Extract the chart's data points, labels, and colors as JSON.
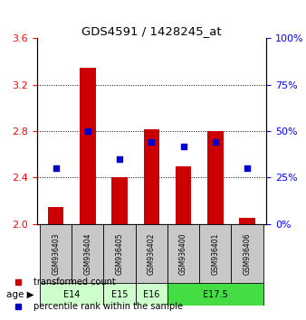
{
  "title": "GDS4591 / 1428245_at",
  "samples": [
    "GSM936403",
    "GSM936404",
    "GSM936405",
    "GSM936402",
    "GSM936400",
    "GSM936401",
    "GSM936406"
  ],
  "bar_values": [
    2.15,
    3.35,
    2.4,
    2.82,
    2.5,
    2.8,
    2.05
  ],
  "bar_bottom": 2.0,
  "percentile_values": [
    30,
    50,
    35,
    44,
    42,
    44,
    30
  ],
  "ylim_left": [
    2.0,
    3.6
  ],
  "ylim_right": [
    0,
    100
  ],
  "yticks_left": [
    2.0,
    2.4,
    2.8,
    3.2,
    3.6
  ],
  "yticks_right": [
    0,
    25,
    50,
    75,
    100
  ],
  "bar_color": "#cc0000",
  "dot_color": "#0000cc",
  "age_groups": [
    {
      "label": "E14",
      "spans": [
        0,
        1
      ],
      "color": "#ccffcc"
    },
    {
      "label": "E15",
      "spans": [
        2
      ],
      "color": "#ccffcc"
    },
    {
      "label": "E16",
      "spans": [
        3
      ],
      "color": "#ccffcc"
    },
    {
      "label": "E17.5",
      "spans": [
        4,
        5,
        6
      ],
      "color": "#44dd44"
    }
  ],
  "legend_items": [
    {
      "label": "transformed count",
      "color": "#cc0000"
    },
    {
      "label": "percentile rank within the sample",
      "color": "#0000cc"
    }
  ],
  "plot_bg": "#ffffff"
}
